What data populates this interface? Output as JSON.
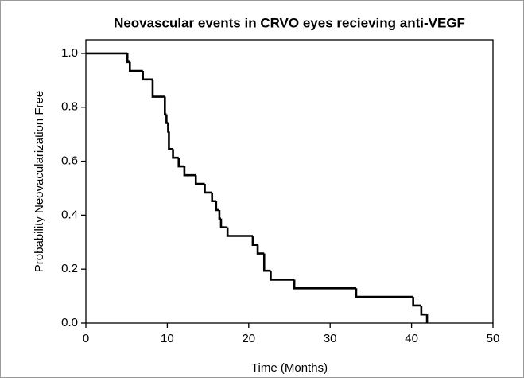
{
  "chart_data": {
    "type": "step",
    "title": "Neovascular events in CRVO eyes recieving anti-VEGF",
    "x_label": "Time (Months)",
    "y_label": "Probability Neovacularization Free",
    "x": [
      0,
      5.1,
      5.4,
      7.0,
      8.2,
      9.7,
      9.9,
      10.1,
      10.2,
      10.7,
      11.4,
      12.1,
      13.5,
      14.6,
      15.5,
      16.0,
      16.4,
      16.6,
      17.4,
      20.5,
      21.1,
      21.9,
      22.7,
      25.6,
      33.2,
      40.2,
      41.2,
      41.9
    ],
    "values": [
      1.0,
      0.968,
      0.935,
      0.903,
      0.839,
      0.774,
      0.742,
      0.71,
      0.645,
      0.613,
      0.581,
      0.548,
      0.516,
      0.484,
      0.452,
      0.419,
      0.387,
      0.355,
      0.323,
      0.29,
      0.258,
      0.194,
      0.161,
      0.129,
      0.097,
      0.065,
      0.032,
      0
    ],
    "color": "#000000",
    "xlim": [
      0,
      50
    ],
    "ylim": [
      0,
      1.05
    ],
    "xticks": [
      0,
      10,
      20,
      30,
      40,
      50
    ],
    "yticks": [
      {
        "value": 0,
        "label": "0.0"
      },
      0.2,
      0.4,
      0.6,
      0.8,
      {
        "value": 1,
        "label": "1.0"
      }
    ]
  }
}
